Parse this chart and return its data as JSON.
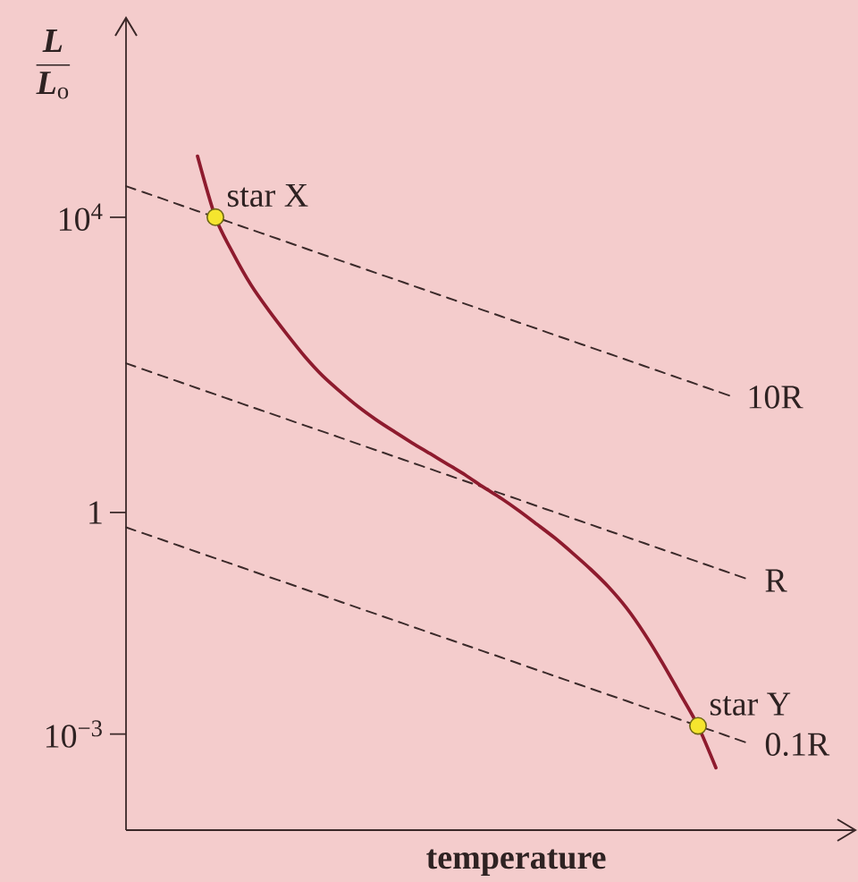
{
  "chart_data": {
    "type": "line",
    "xlabel": "temperature",
    "ylabel": "\\frac{\\textbf{\\textit{L}}}{\\textbf{\\textit{L}}_{\\textrm{o}}}",
    "log": true,
    "ylim": [
      5e-05,
      5000000
    ],
    "yticks": [
      {
        "value": 0.001,
        "label": "10$^{−3}$"
      },
      1,
      {
        "value": 10000,
        "label": "10$^{4}$"
      }
    ],
    "tick_labels": "y",
    "categories": [
      null,
      null,
      null,
      null,
      null,
      null,
      null,
      null,
      null,
      null,
      null,
      null,
      null,
      null,
      null,
      null,
      null,
      null,
      null,
      null,
      null,
      null,
      null,
      null,
      null,
      null,
      null,
      null,
      null,
      null,
      null,
      null,
      null,
      null,
      null,
      null
    ],
    "series": [
      {
        "name": "10R",
        "color": "#3b2a2a",
        "line_style": "dashed",
        "values": [
          26300,
          21700,
          17900,
          14700,
          12100,
          10000,
          8240,
          6790,
          5600,
          4610,
          3800,
          3130,
          2580,
          2130,
          1750,
          1450,
          1190,
          982,
          809,
          667,
          549,
          453,
          373,
          308,
          253,
          209,
          172,
          142,
          117,
          96.3,
          79.4,
          65.4,
          53.9,
          44.4,
          36.6,
          null
        ]
      },
      {
        "name": "R",
        "color": "#3b2a2a",
        "line_style": "dashed",
        "values": [
          105,
          86.3,
          71.1,
          58.6,
          48.3,
          39.8,
          32.8,
          27.0,
          22.3,
          18.4,
          15.1,
          12.5,
          10.3,
          8.47,
          6.98,
          5.75,
          4.74,
          3.91,
          3.22,
          2.65,
          2.19,
          1.8,
          1.49,
          1.22,
          1.01,
          0.832,
          0.686,
          0.565,
          0.466,
          0.384,
          0.316,
          0.261,
          0.215,
          0.177,
          0.146,
          0.12
        ]
      },
      {
        "name": "0.1R",
        "color": "#3b2a2a",
        "line_style": "dashed",
        "values": [
          0.631,
          0.52,
          0.429,
          0.353,
          0.291,
          0.24,
          0.198,
          0.163,
          0.134,
          0.111,
          0.0912,
          0.0752,
          0.0619,
          0.051,
          0.0421,
          0.0347,
          0.0286,
          0.0235,
          0.0194,
          0.016,
          0.0132,
          0.0109,
          0.00895,
          0.00738,
          0.00608,
          0.00501,
          0.00413,
          0.0034,
          0.00281,
          0.00231,
          0.00191,
          0.00157,
          0.00129,
          0.00107,
          0.000878,
          0.000724
        ]
      },
      {
        "color": "#8e1b2e",
        "line_style": "solid",
        "values": [
          null,
          null,
          null,
          null,
          67000,
          10000,
          3200,
          1200,
          540,
          260,
          130,
          71,
          43,
          27,
          18,
          12.5,
          8.8,
          6.3,
          4.5,
          3.2,
          2.2,
          1.55,
          1.05,
          0.69,
          0.45,
          0.28,
          0.17,
          0.098,
          0.051,
          0.023,
          0.0093,
          0.0035,
          0.00129,
          0.00035,
          null,
          null
        ]
      },
      {
        "type": "scatter",
        "name": "star X",
        "color": "#f5e52e",
        "marker": "circle",
        "values": [
          null,
          null,
          null,
          null,
          null,
          10000,
          null,
          null,
          null,
          null,
          null,
          null,
          null,
          null,
          null,
          null,
          null,
          null,
          null,
          null,
          null,
          null,
          null,
          null,
          null,
          null,
          null,
          null,
          null,
          null,
          null,
          null,
          null,
          null,
          null,
          null
        ]
      },
      {
        "type": "scatter",
        "name": "star Y",
        "color": "#f5e52e",
        "marker": "circle",
        "values": [
          null,
          null,
          null,
          null,
          null,
          null,
          null,
          null,
          null,
          null,
          null,
          null,
          null,
          null,
          null,
          null,
          null,
          null,
          null,
          null,
          null,
          null,
          null,
          null,
          null,
          null,
          null,
          null,
          null,
          null,
          null,
          null,
          0.00129,
          null,
          null,
          null
        ]
      }
    ]
  }
}
